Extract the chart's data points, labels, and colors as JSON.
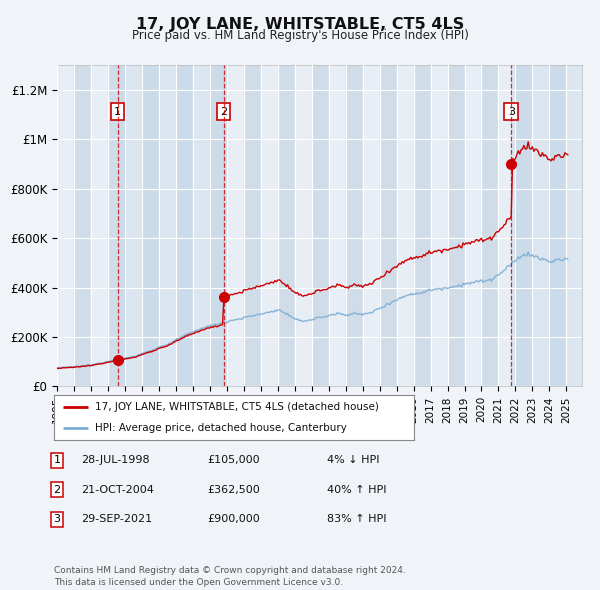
{
  "title": "17, JOY LANE, WHITSTABLE, CT5 4LS",
  "subtitle": "Price paid vs. HM Land Registry's House Price Index (HPI)",
  "ylabel_ticks": [
    "£0",
    "£200K",
    "£400K",
    "£600K",
    "£800K",
    "£1M",
    "£1.2M"
  ],
  "ytick_values": [
    0,
    200000,
    400000,
    600000,
    800000,
    1000000,
    1200000
  ],
  "ylim": [
    0,
    1300000
  ],
  "xlim_start": 1995.0,
  "xlim_end": 2025.92,
  "sale_dates": [
    1998.57,
    2004.81,
    2021.75
  ],
  "sale_prices": [
    105000,
    362500,
    900000
  ],
  "sale_labels": [
    "1",
    "2",
    "3"
  ],
  "sale_date_strs": [
    "28-JUL-1998",
    "21-OCT-2004",
    "29-SEP-2021"
  ],
  "sale_price_strs": [
    "£105,000",
    "£362,500",
    "£900,000"
  ],
  "sale_hpi_strs": [
    "4% ↓ HPI",
    "40% ↑ HPI",
    "83% ↑ HPI"
  ],
  "line_color_property": "#cc0000",
  "line_color_hpi": "#7dadd4",
  "background_color": "#f0f4f8",
  "plot_bg_color": "#e8eef5",
  "grid_color": "#ffffff",
  "shade_color": "#d0dde8",
  "footer_text": "Contains HM Land Registry data © Crown copyright and database right 2024.\nThis data is licensed under the Open Government Licence v3.0.",
  "legend_label_property": "17, JOY LANE, WHITSTABLE, CT5 4LS (detached house)",
  "legend_label_hpi": "HPI: Average price, detached house, Canterbury",
  "xtick_years": [
    1995,
    1996,
    1997,
    1998,
    1999,
    2000,
    2001,
    2002,
    2003,
    2004,
    2005,
    2006,
    2007,
    2008,
    2009,
    2010,
    2011,
    2012,
    2013,
    2014,
    2015,
    2016,
    2017,
    2018,
    2019,
    2020,
    2021,
    2022,
    2023,
    2024,
    2025
  ]
}
